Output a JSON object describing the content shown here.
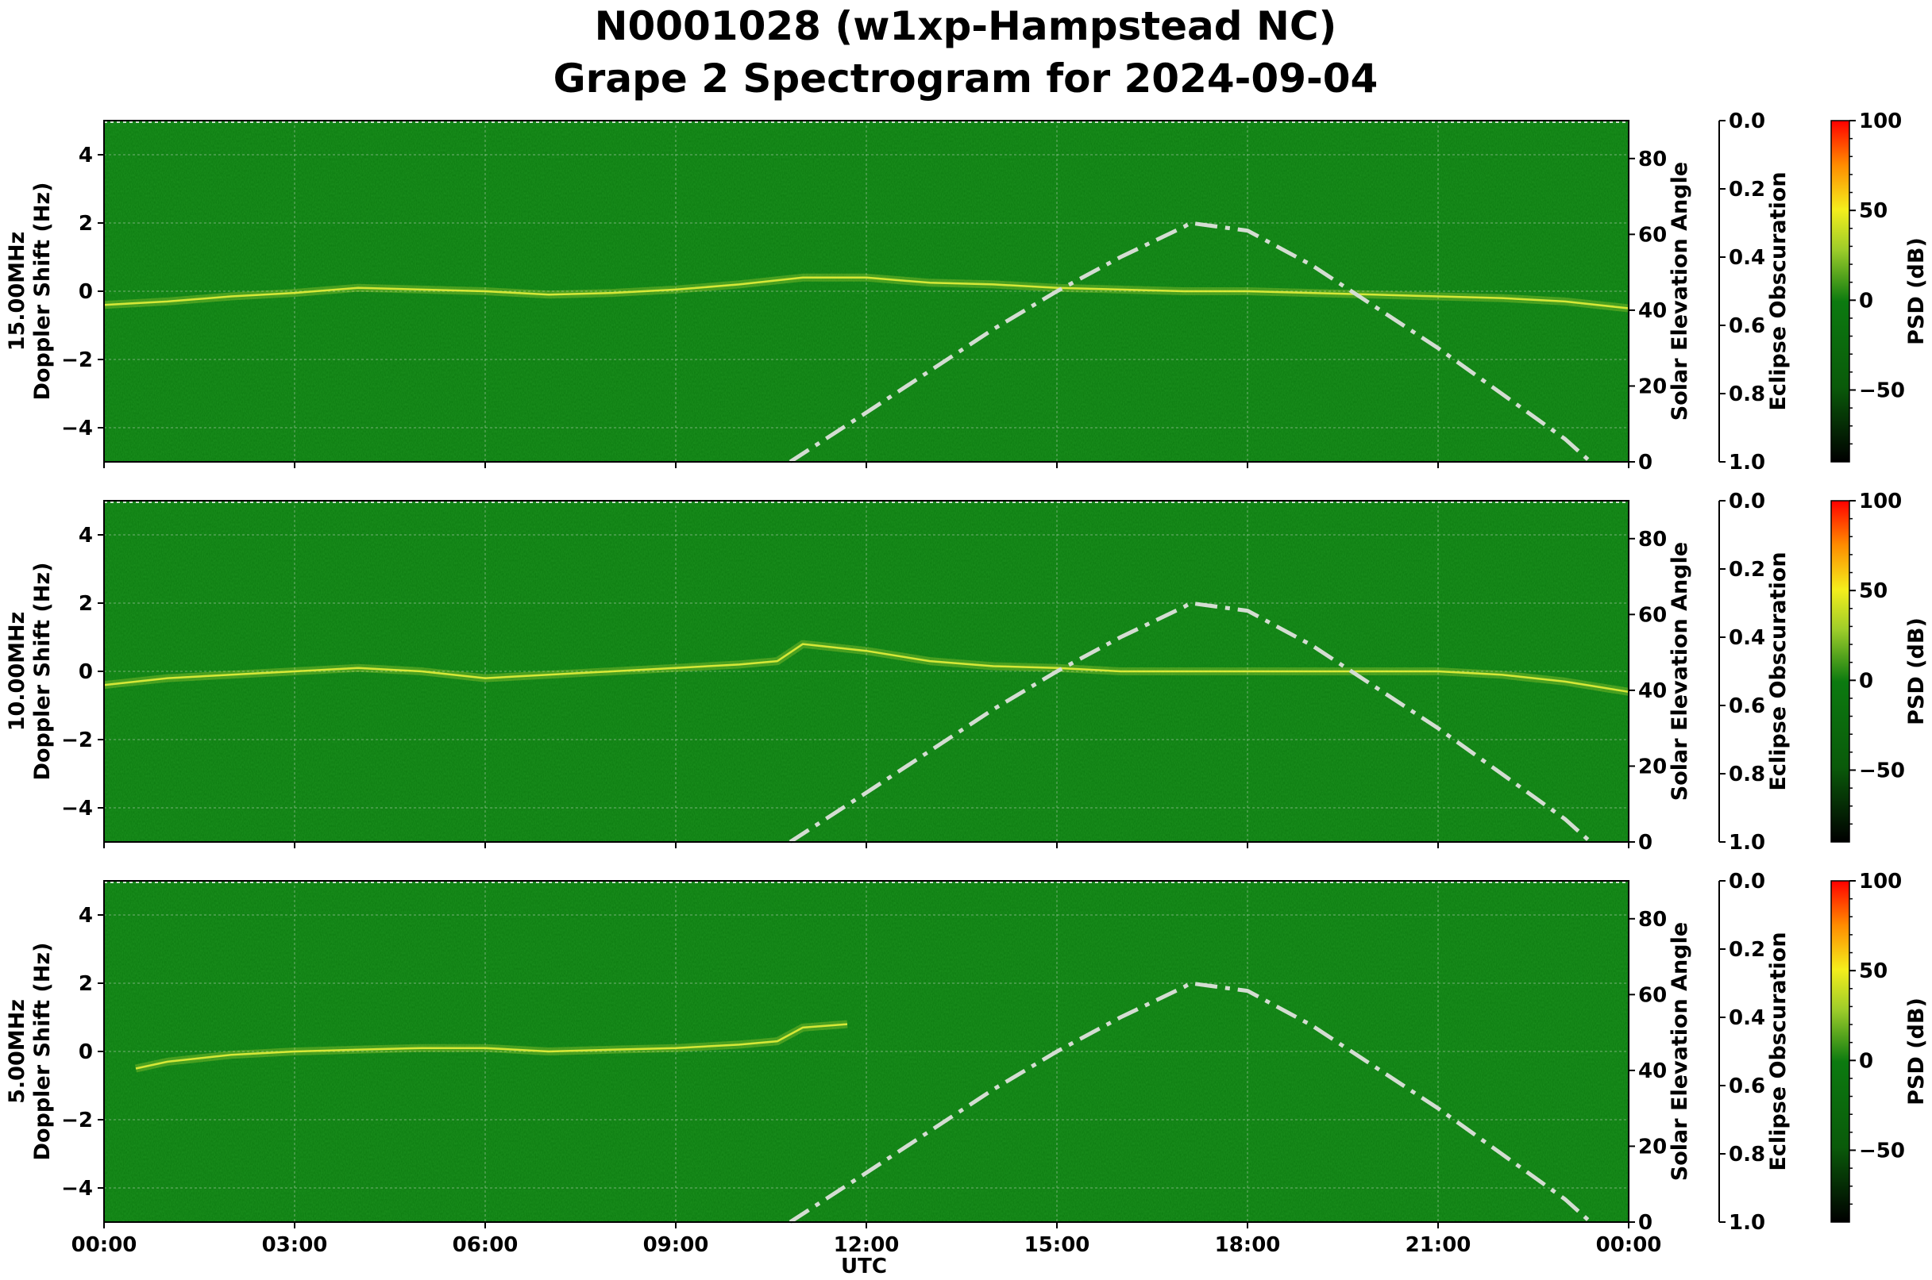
{
  "title_line1": "N0001028 (w1xp-Hampstead NC)",
  "title_line2": "Grape 2 Spectrogram for 2024-09-04",
  "xlabel": "UTC",
  "colors": {
    "background_green": "#0c7a10",
    "trace_yellow": "#e6f03a",
    "solar_curve": "#d4ddd2",
    "colorbar": [
      "#000000",
      "#0a5a0a",
      "#0c7a10",
      "#9ccc2a",
      "#f4ee1c",
      "#ff8c00",
      "#ff0000"
    ]
  },
  "chart_data": [
    {
      "type": "heatmap",
      "panel_label": "15.00MHz",
      "ylabel_left": "Doppler Shift (Hz)",
      "ylabel_right": "Solar Elevation Angle",
      "ylabel_eclipse": "Eclipse Obscuration",
      "ylabel_colorbar": "PSD (dB)",
      "x_ticks": [
        "00:00",
        "03:00",
        "06:00",
        "09:00",
        "12:00",
        "15:00",
        "18:00",
        "21:00",
        "00:00"
      ],
      "xlim_hours": [
        0,
        24
      ],
      "ylim": [
        -5,
        5
      ],
      "y_ticks": [
        4,
        2,
        0,
        -2,
        -4
      ],
      "y2lim": [
        0,
        90
      ],
      "y2_ticks": [
        0,
        20,
        40,
        60,
        80
      ],
      "eclipse_lim": [
        0.0,
        1.0
      ],
      "eclipse_ticks": [
        "0.0",
        "0.2",
        "0.4",
        "0.6",
        "0.8",
        "1.0"
      ],
      "colorbar_lim": [
        -90,
        100
      ],
      "colorbar_ticks": [
        100,
        50,
        0,
        -50
      ],
      "colorbar_tick_labels": [
        "100",
        "50",
        "0",
        "−50"
      ],
      "grid": true,
      "doppler_trace": {
        "x_hours": [
          0,
          1,
          2,
          3,
          4,
          5,
          6,
          7,
          8,
          9,
          10,
          11,
          12,
          13,
          14,
          15,
          16,
          17,
          18,
          19,
          20,
          21,
          22,
          23,
          24
        ],
        "y_hz": [
          -0.4,
          -0.3,
          -0.15,
          -0.05,
          0.1,
          0.05,
          0.0,
          -0.1,
          -0.05,
          0.05,
          0.2,
          0.4,
          0.4,
          0.25,
          0.2,
          0.1,
          0.05,
          0.0,
          0.0,
          -0.05,
          -0.1,
          -0.15,
          -0.2,
          -0.3,
          -0.5
        ]
      },
      "solar_elevation": {
        "x_hours": [
          10.8,
          12,
          13,
          14,
          15,
          16,
          17,
          17.1,
          18,
          19,
          20,
          21,
          22,
          23,
          23.4
        ],
        "y_deg": [
          0,
          13,
          24,
          35,
          45,
          54,
          62,
          63,
          61,
          52,
          41,
          30,
          18,
          6,
          0
        ]
      }
    },
    {
      "type": "heatmap",
      "panel_label": "10.00MHz",
      "ylabel_left": "Doppler Shift (Hz)",
      "ylabel_right": "Solar Elevation Angle",
      "ylabel_eclipse": "Eclipse Obscuration",
      "ylabel_colorbar": "PSD (dB)",
      "x_ticks": [
        "00:00",
        "03:00",
        "06:00",
        "09:00",
        "12:00",
        "15:00",
        "18:00",
        "21:00",
        "00:00"
      ],
      "xlim_hours": [
        0,
        24
      ],
      "ylim": [
        -5,
        5
      ],
      "y_ticks": [
        4,
        2,
        0,
        -2,
        -4
      ],
      "y2lim": [
        0,
        90
      ],
      "y2_ticks": [
        0,
        20,
        40,
        60,
        80
      ],
      "eclipse_lim": [
        0.0,
        1.0
      ],
      "eclipse_ticks": [
        "0.0",
        "0.2",
        "0.4",
        "0.6",
        "0.8",
        "1.0"
      ],
      "colorbar_lim": [
        -90,
        100
      ],
      "colorbar_ticks": [
        100,
        50,
        0,
        -50
      ],
      "colorbar_tick_labels": [
        "100",
        "50",
        "0",
        "−50"
      ],
      "grid": true,
      "doppler_trace": {
        "x_hours": [
          0,
          1,
          2,
          3,
          4,
          5,
          6,
          7,
          8,
          9,
          10,
          10.6,
          11,
          12,
          13,
          14,
          15,
          16,
          17,
          18,
          19,
          20,
          21,
          22,
          23,
          24
        ],
        "y_hz": [
          -0.4,
          -0.2,
          -0.1,
          0.0,
          0.1,
          0.0,
          -0.2,
          -0.1,
          0.0,
          0.1,
          0.2,
          0.3,
          0.8,
          0.6,
          0.3,
          0.15,
          0.1,
          0.0,
          0.0,
          0.0,
          0.0,
          0.0,
          0.0,
          -0.1,
          -0.3,
          -0.6
        ]
      },
      "solar_elevation": {
        "x_hours": [
          10.8,
          12,
          13,
          14,
          15,
          16,
          17,
          17.1,
          18,
          19,
          20,
          21,
          22,
          23,
          23.4
        ],
        "y_deg": [
          0,
          13,
          24,
          35,
          45,
          54,
          62,
          63,
          61,
          52,
          41,
          30,
          18,
          6,
          0
        ]
      }
    },
    {
      "type": "heatmap",
      "panel_label": "5.00MHz",
      "ylabel_left": "Doppler Shift (Hz)",
      "ylabel_right": "Solar Elevation Angle",
      "ylabel_eclipse": "Eclipse Obscuration",
      "ylabel_colorbar": "PSD (dB)",
      "x_ticks": [
        "00:00",
        "03:00",
        "06:00",
        "09:00",
        "12:00",
        "15:00",
        "18:00",
        "21:00",
        "00:00"
      ],
      "xlim_hours": [
        0,
        24
      ],
      "ylim": [
        -5,
        5
      ],
      "y_ticks": [
        4,
        2,
        0,
        -2,
        -4
      ],
      "y2lim": [
        0,
        90
      ],
      "y2_ticks": [
        0,
        20,
        40,
        60,
        80
      ],
      "eclipse_lim": [
        0.0,
        1.0
      ],
      "eclipse_ticks": [
        "0.0",
        "0.2",
        "0.4",
        "0.6",
        "0.8",
        "1.0"
      ],
      "colorbar_lim": [
        -90,
        100
      ],
      "colorbar_ticks": [
        100,
        50,
        0,
        -50
      ],
      "colorbar_tick_labels": [
        "100",
        "50",
        "0",
        "−50"
      ],
      "grid": true,
      "doppler_trace": {
        "x_hours": [
          0.5,
          1,
          2,
          3,
          4,
          5,
          6,
          7,
          8,
          9,
          10,
          10.6,
          11,
          11.7
        ],
        "y_hz": [
          -0.5,
          -0.3,
          -0.1,
          0.0,
          0.05,
          0.1,
          0.1,
          0.0,
          0.05,
          0.1,
          0.2,
          0.3,
          0.7,
          0.8
        ]
      },
      "solar_elevation": {
        "x_hours": [
          10.8,
          12,
          13,
          14,
          15,
          16,
          17,
          17.1,
          18,
          19,
          20,
          21,
          22,
          23,
          23.4
        ],
        "y_deg": [
          0,
          13,
          24,
          35,
          45,
          54,
          62,
          63,
          61,
          52,
          41,
          30,
          18,
          6,
          0
        ]
      }
    }
  ]
}
